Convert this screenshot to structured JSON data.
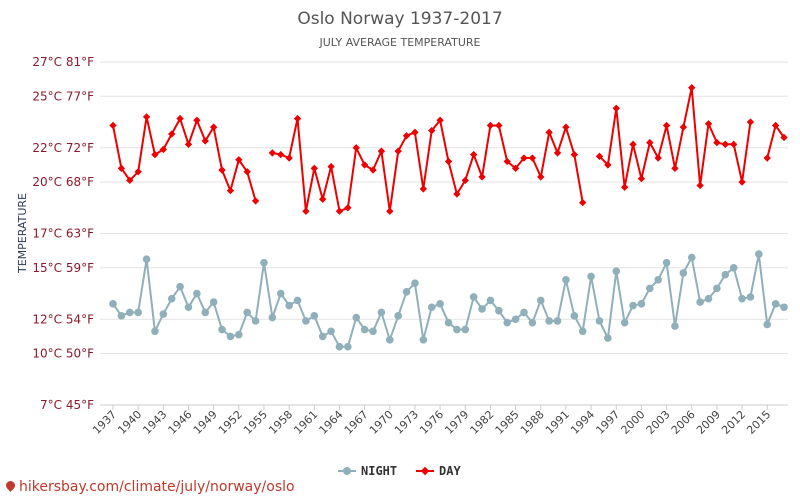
{
  "footer": {
    "text": "hikersbay.com/climate/july/norway/oslo"
  },
  "chart_data": {
    "type": "line",
    "title": "Oslo Norway 1937-2017",
    "subtitle": "JULY AVERAGE TEMPERATURE",
    "ylabel": "TEMPERATURE",
    "ylim": [
      7,
      27
    ],
    "yticks": [
      7,
      10,
      12,
      15,
      17,
      20,
      22,
      25,
      27
    ],
    "ytick_labels": [
      "7°C 45°F",
      "10°C 50°F",
      "12°C 54°F",
      "15°C 59°F",
      "17°C 63°F",
      "20°C 68°F",
      "22°C 72°F",
      "25°C 77°F",
      "27°C 81°F"
    ],
    "xlim": [
      1937,
      2017
    ],
    "xticks": [
      1937,
      1940,
      1943,
      1946,
      1949,
      1952,
      1955,
      1958,
      1961,
      1964,
      1967,
      1970,
      1973,
      1976,
      1979,
      1982,
      1985,
      1988,
      1991,
      1994,
      1997,
      2000,
      2003,
      2006,
      2009,
      2012,
      2015
    ],
    "legend": [
      "NIGHT",
      "DAY"
    ],
    "colors": {
      "night": "#8fb0ba",
      "day": "#ee0000"
    },
    "series": [
      {
        "name": "NIGHT",
        "points": [
          [
            1937,
            12.9
          ],
          [
            1938,
            12.2
          ],
          [
            1939,
            12.4
          ],
          [
            1940,
            12.4
          ],
          [
            1941,
            15.5
          ],
          [
            1942,
            11.3
          ],
          [
            1943,
            12.3
          ],
          [
            1944,
            13.2
          ],
          [
            1945,
            13.9
          ],
          [
            1946,
            12.7
          ],
          [
            1947,
            13.5
          ],
          [
            1948,
            12.4
          ],
          [
            1949,
            13.0
          ],
          [
            1950,
            11.4
          ],
          [
            1951,
            11.0
          ],
          [
            1952,
            11.1
          ],
          [
            1953,
            12.4
          ],
          [
            1954,
            11.9
          ],
          [
            1955,
            15.3
          ],
          [
            1956,
            12.1
          ],
          [
            1957,
            13.5
          ],
          [
            1958,
            12.8
          ],
          [
            1959,
            13.1
          ],
          [
            1960,
            11.9
          ],
          [
            1961,
            12.2
          ],
          [
            1962,
            11.0
          ],
          [
            1963,
            11.3
          ],
          [
            1964,
            10.4
          ],
          [
            1965,
            10.4
          ],
          [
            1966,
            12.1
          ],
          [
            1967,
            11.4
          ],
          [
            1968,
            11.3
          ],
          [
            1969,
            12.4
          ],
          [
            1970,
            10.8
          ],
          [
            1971,
            12.2
          ],
          [
            1972,
            13.6
          ],
          [
            1973,
            14.1
          ],
          [
            1974,
            10.8
          ],
          [
            1975,
            12.7
          ],
          [
            1976,
            12.9
          ],
          [
            1977,
            11.8
          ],
          [
            1978,
            11.4
          ],
          [
            1979,
            11.4
          ],
          [
            1980,
            13.3
          ],
          [
            1981,
            12.6
          ],
          [
            1982,
            13.1
          ],
          [
            1983,
            12.5
          ],
          [
            1984,
            11.8
          ],
          [
            1985,
            12.0
          ],
          [
            1986,
            12.4
          ],
          [
            1987,
            11.8
          ],
          [
            1988,
            13.1
          ],
          [
            1989,
            11.9
          ],
          [
            1990,
            11.9
          ],
          [
            1991,
            14.3
          ],
          [
            1992,
            12.2
          ],
          [
            1993,
            11.3
          ],
          [
            1994,
            14.5
          ],
          [
            1995,
            11.9
          ],
          [
            1996,
            10.9
          ],
          [
            1997,
            14.8
          ],
          [
            1998,
            11.8
          ],
          [
            1999,
            12.8
          ],
          [
            2000,
            12.9
          ],
          [
            2001,
            13.8
          ],
          [
            2002,
            14.3
          ],
          [
            2003,
            15.3
          ],
          [
            2004,
            11.6
          ],
          [
            2005,
            14.7
          ],
          [
            2006,
            15.6
          ],
          [
            2007,
            13.0
          ],
          [
            2008,
            13.2
          ],
          [
            2009,
            13.8
          ],
          [
            2010,
            14.6
          ],
          [
            2011,
            15.0
          ],
          [
            2012,
            13.2
          ],
          [
            2013,
            13.3
          ],
          [
            2014,
            15.8
          ],
          [
            2015,
            11.7
          ],
          [
            2016,
            12.9
          ],
          [
            2017,
            12.7
          ]
        ]
      },
      {
        "name": "DAY",
        "points": [
          [
            1937,
            23.3
          ],
          [
            1938,
            20.8
          ],
          [
            1939,
            20.1
          ],
          [
            1940,
            20.6
          ],
          [
            1941,
            23.8
          ],
          [
            1942,
            21.6
          ],
          [
            1943,
            21.9
          ],
          [
            1944,
            22.8
          ],
          [
            1945,
            23.7
          ],
          [
            1946,
            22.2
          ],
          [
            1947,
            23.6
          ],
          [
            1948,
            22.4
          ],
          [
            1949,
            23.2
          ],
          [
            1950,
            20.7
          ],
          [
            1951,
            19.5
          ],
          [
            1952,
            21.3
          ],
          [
            1953,
            20.6
          ],
          [
            1954,
            18.9
          ],
          [
            1955,
            null
          ],
          [
            1956,
            21.7
          ],
          [
            1957,
            21.6
          ],
          [
            1958,
            21.4
          ],
          [
            1959,
            23.7
          ],
          [
            1960,
            18.3
          ],
          [
            1961,
            20.8
          ],
          [
            1962,
            19.0
          ],
          [
            1963,
            20.9
          ],
          [
            1964,
            18.3
          ],
          [
            1965,
            18.5
          ],
          [
            1966,
            22.0
          ],
          [
            1967,
            21.0
          ],
          [
            1968,
            20.7
          ],
          [
            1969,
            21.8
          ],
          [
            1970,
            18.3
          ],
          [
            1971,
            21.8
          ],
          [
            1972,
            22.7
          ],
          [
            1973,
            22.9
          ],
          [
            1974,
            19.6
          ],
          [
            1975,
            23.0
          ],
          [
            1976,
            23.6
          ],
          [
            1977,
            21.2
          ],
          [
            1978,
            19.3
          ],
          [
            1979,
            20.1
          ],
          [
            1980,
            21.6
          ],
          [
            1981,
            20.3
          ],
          [
            1982,
            23.3
          ],
          [
            1983,
            23.3
          ],
          [
            1984,
            21.2
          ],
          [
            1985,
            20.8
          ],
          [
            1986,
            21.4
          ],
          [
            1987,
            21.4
          ],
          [
            1988,
            20.3
          ],
          [
            1989,
            22.9
          ],
          [
            1990,
            21.7
          ],
          [
            1991,
            23.2
          ],
          [
            1992,
            21.6
          ],
          [
            1993,
            18.8
          ],
          [
            1994,
            null
          ],
          [
            1995,
            21.5
          ],
          [
            1996,
            21.0
          ],
          [
            1997,
            24.3
          ],
          [
            1998,
            19.7
          ],
          [
            1999,
            22.2
          ],
          [
            2000,
            20.2
          ],
          [
            2001,
            22.3
          ],
          [
            2002,
            21.4
          ],
          [
            2003,
            23.3
          ],
          [
            2004,
            20.8
          ],
          [
            2005,
            23.2
          ],
          [
            2006,
            25.5
          ],
          [
            2007,
            19.8
          ],
          [
            2008,
            23.4
          ],
          [
            2009,
            22.3
          ],
          [
            2010,
            22.2
          ],
          [
            2011,
            22.2
          ],
          [
            2012,
            20.0
          ],
          [
            2013,
            23.5
          ],
          [
            2014,
            null
          ],
          [
            2015,
            21.4
          ],
          [
            2016,
            23.3
          ],
          [
            2017,
            22.6
          ]
        ]
      }
    ]
  }
}
